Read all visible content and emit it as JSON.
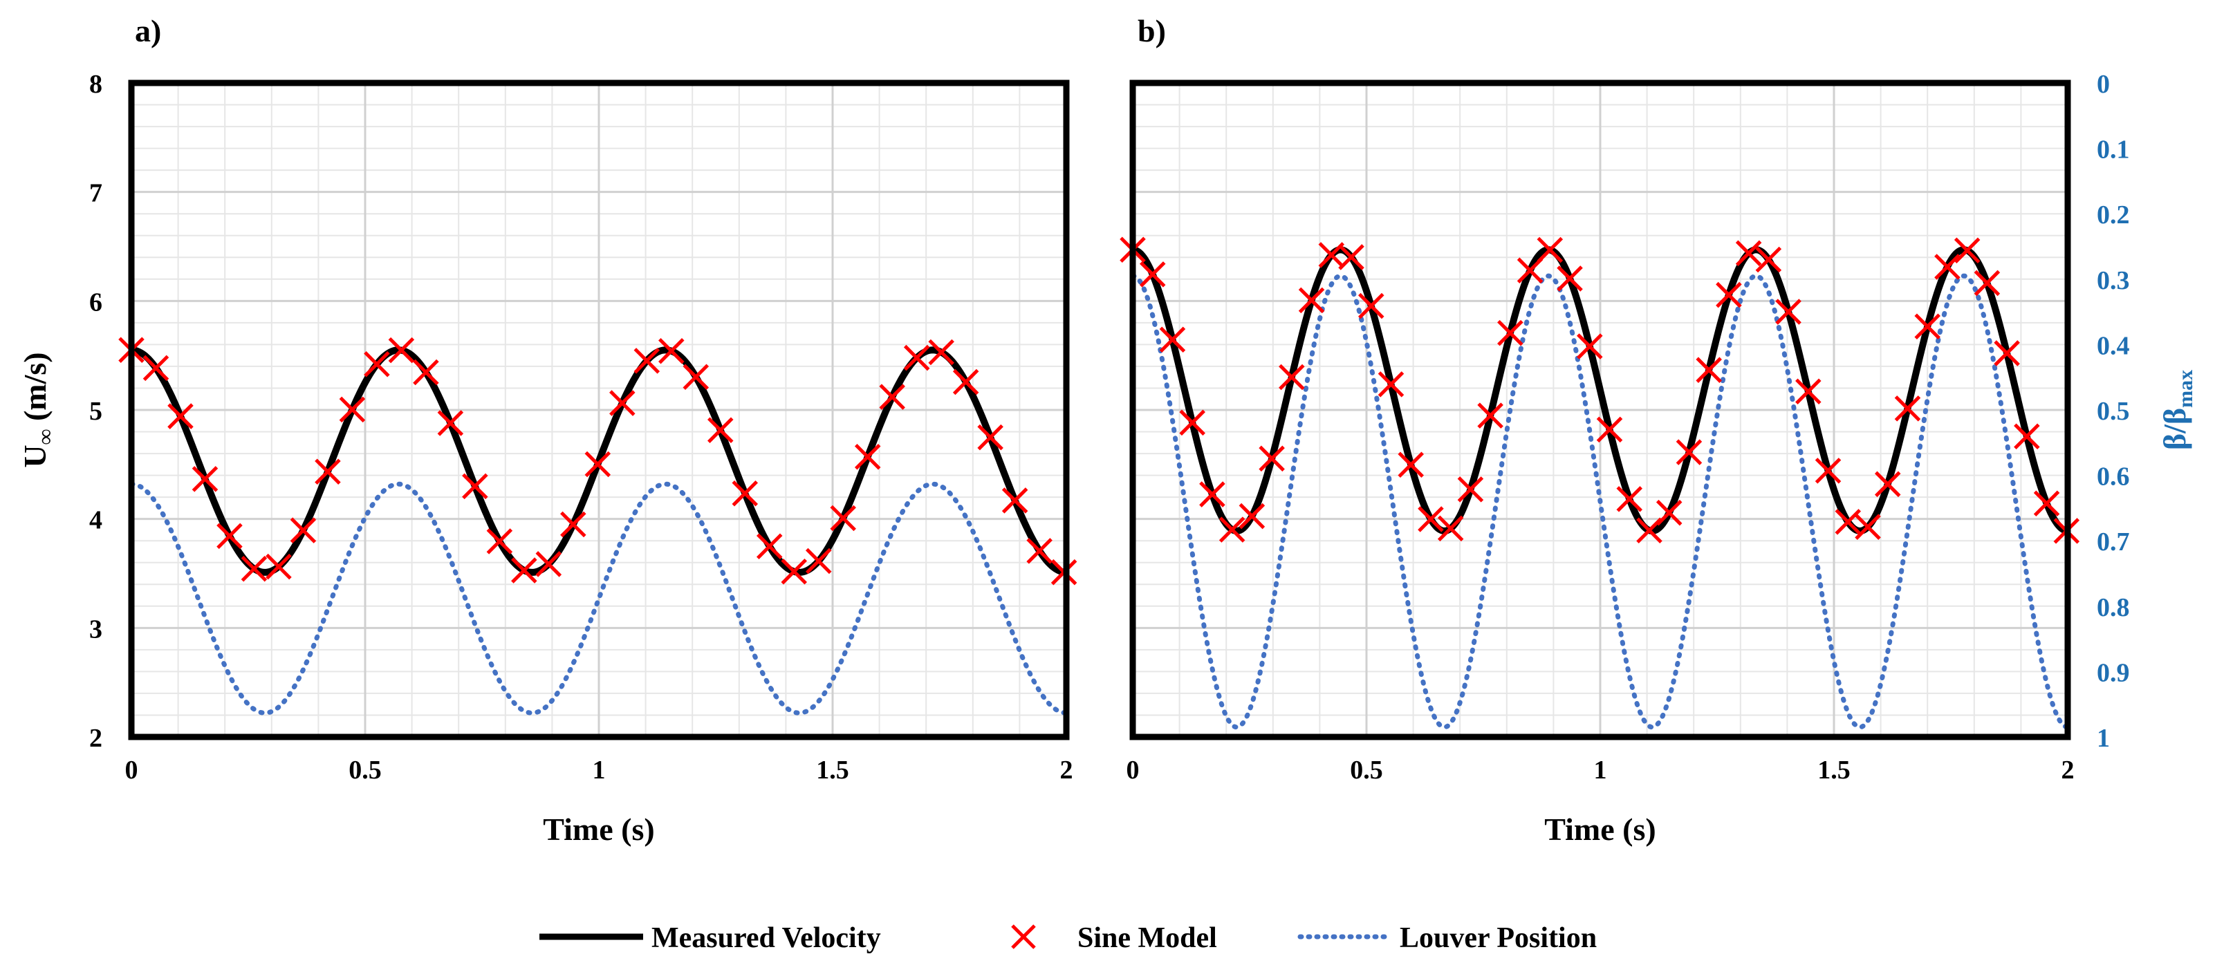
{
  "colors": {
    "measured": "#000000",
    "sine": "#ff0000",
    "louver": "#4472c4",
    "right_axis": "#1f6fb2",
    "grid_major": "#d0d0d0",
    "grid_minor": "#e6e6e6"
  },
  "legend": {
    "measured_label": "Measured Velocity",
    "sine_label": "Sine Model",
    "louver_label": "Louver Position"
  },
  "chart_data": [
    {
      "type": "line",
      "panel_label": "a)",
      "xlabel": "Time (s)",
      "ylabel": "U∞ (m/s)",
      "xlim": [
        0,
        2
      ],
      "ylim": [
        2,
        8
      ],
      "x_ticks": [
        "0",
        "0.5",
        "1",
        "1.5",
        "2"
      ],
      "y_ticks": [
        "2",
        "3",
        "4",
        "5",
        "6",
        "7",
        "8"
      ],
      "grid": true,
      "series": [
        {
          "name": "Measured Velocity",
          "style": "solid",
          "mean": 4.53,
          "amplitude": 1.02,
          "frequency_hz": 1.75,
          "phase_rad": 1.5708
        },
        {
          "name": "Sine Model",
          "style": "markers",
          "marker": "x",
          "mean": 4.53,
          "amplitude": 1.02,
          "frequency_hz": 1.75,
          "phase_rad": 1.5708,
          "marker_step_s": 0.0525
        },
        {
          "name": "Louver Position",
          "style": "dotted",
          "mean": 3.27,
          "amplitude": 1.05,
          "frequency_hz": 1.75,
          "phase_rad": 1.5708
        }
      ]
    },
    {
      "type": "line",
      "panel_label": "b)",
      "xlabel": "Time (s)",
      "ylabel": "",
      "y2label": "β/βmax",
      "xlim": [
        0,
        2
      ],
      "ylim": [
        2,
        8
      ],
      "y2lim": [
        1,
        0
      ],
      "x_ticks": [
        "0",
        "0.5",
        "1",
        "1.5",
        "2"
      ],
      "y2_ticks": [
        "0",
        "0.1",
        "0.2",
        "0.3",
        "0.4",
        "0.5",
        "0.6",
        "0.7",
        "0.8",
        "0.9",
        "1"
      ],
      "grid": true,
      "series": [
        {
          "name": "Measured Velocity",
          "style": "solid",
          "mean": 5.18,
          "amplitude": 1.29,
          "frequency_hz": 2.25,
          "phase_rad": 1.5708
        },
        {
          "name": "Sine Model",
          "style": "markers",
          "marker": "x",
          "mean": 5.18,
          "amplitude": 1.29,
          "frequency_hz": 2.25,
          "phase_rad": 1.5708,
          "marker_step_s": 0.0425
        },
        {
          "name": "Louver Position",
          "style": "dotted",
          "axis": "y2",
          "mean": 0.64,
          "amplitude": 0.345,
          "frequency_hz": 2.25,
          "phase_rad": -1.5708
        }
      ]
    }
  ]
}
